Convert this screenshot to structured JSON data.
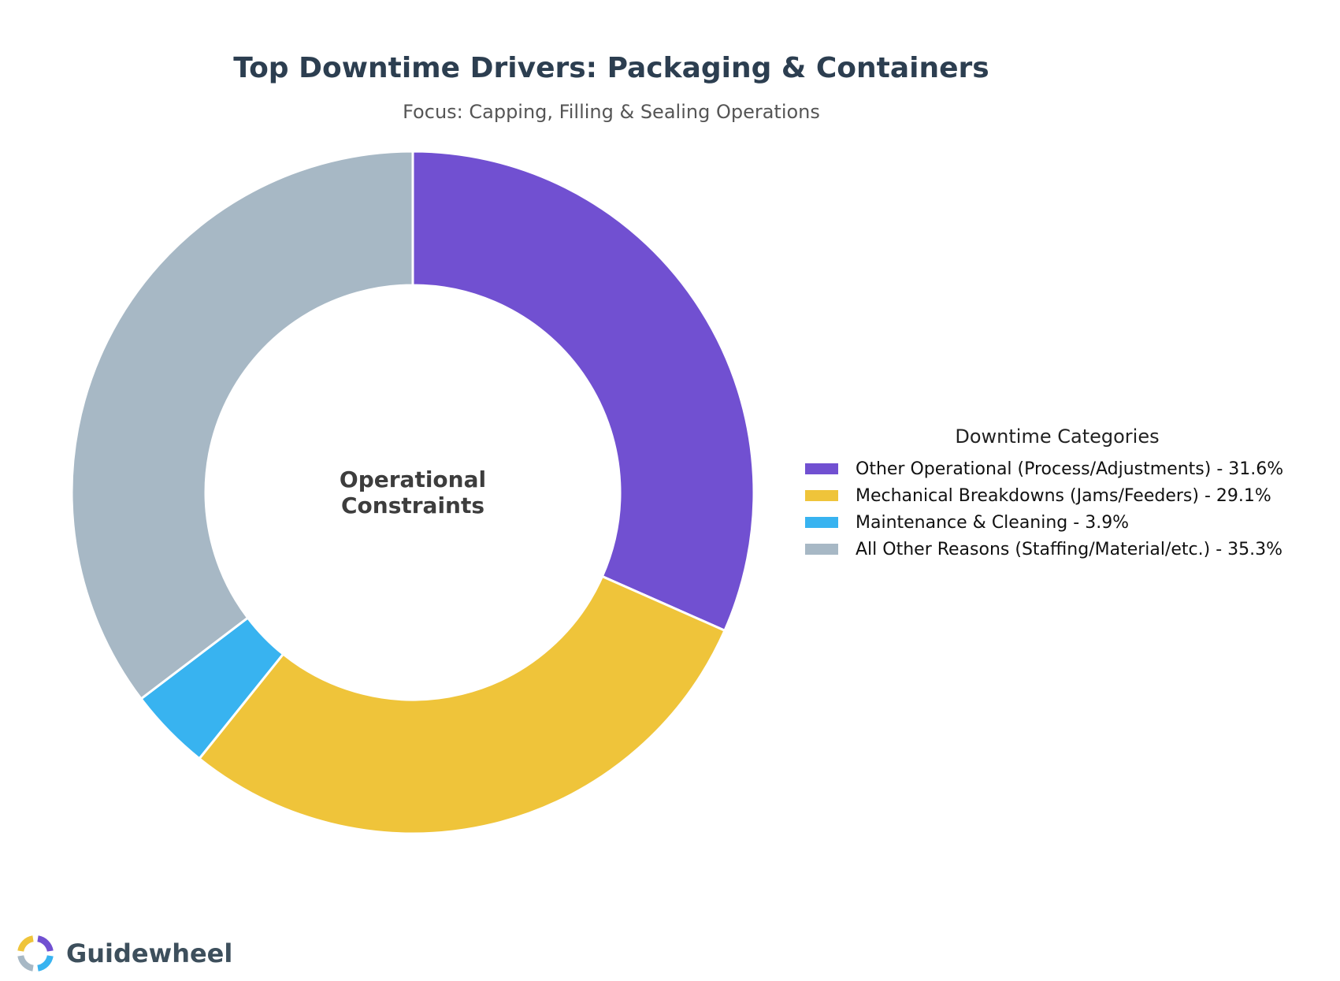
{
  "chart_data": {
    "type": "pie",
    "variant": "donut",
    "title": "Top Downtime Drivers: Packaging & Containers",
    "subtitle": "Focus: Capping, Filling & Sealing Operations",
    "center_label": [
      "Operational",
      "Constraints"
    ],
    "legend_title": "Downtime Categories",
    "legend_position": "right",
    "start_angle": "top",
    "direction": "clockwise",
    "slices": [
      {
        "label": "Other Operational (Process/Adjustments) - 31.6%",
        "value": 31.6,
        "color": "#7150d1"
      },
      {
        "label": "Mechanical Breakdowns (Jams/Feeders) - 29.1%",
        "value": 29.1,
        "color": "#efc43a"
      },
      {
        "label": "Maintenance & Cleaning - 3.9%",
        "value": 3.9,
        "color": "#38b3f0"
      },
      {
        "label": "All Other Reasons (Staffing/Material/etc.) - 35.3%",
        "value": 35.3,
        "color": "#a7b8c5"
      }
    ]
  },
  "branding": {
    "logo_text": "Guidewheel",
    "logo_icon": "guidewheel-ring-icon",
    "logo_colors": [
      "#7150d1",
      "#38b3f0",
      "#a7b8c5",
      "#efc43a"
    ],
    "text_color": "#3d4f5c"
  }
}
